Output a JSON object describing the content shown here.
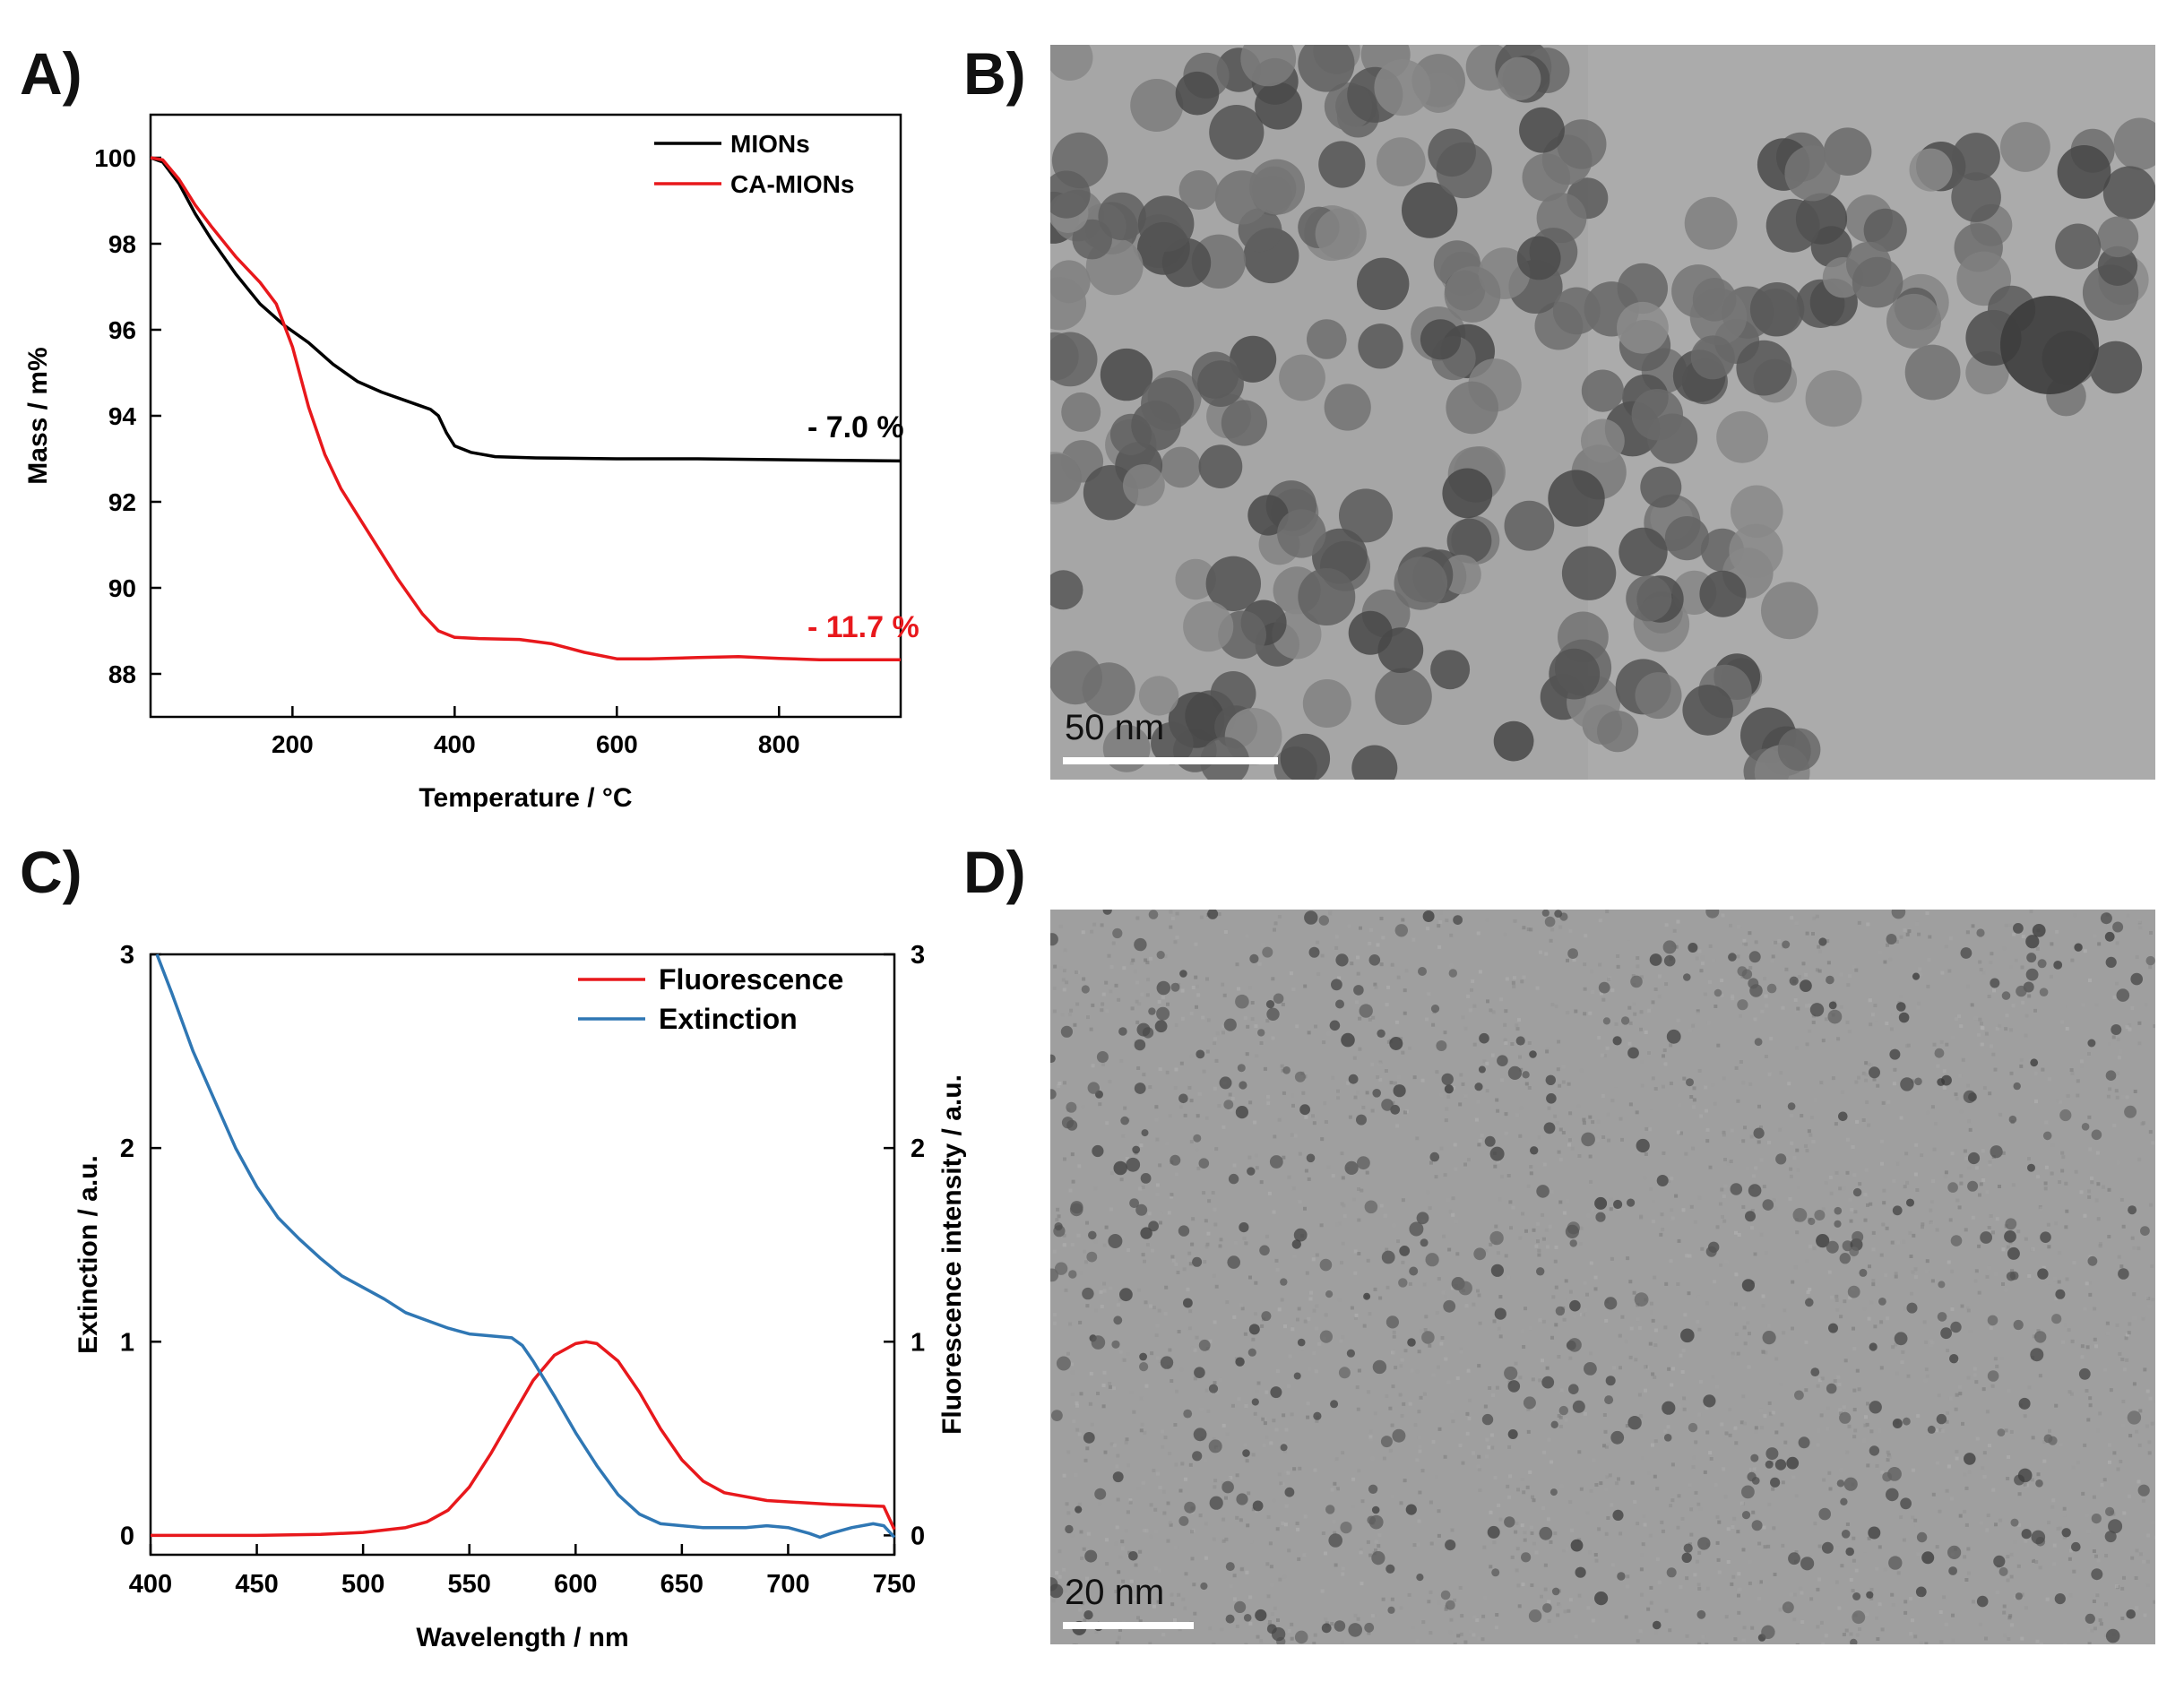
{
  "panels": {
    "a_label": "A)",
    "b_label": "B)",
    "c_label": "C)",
    "d_label": "D)"
  },
  "chart_data": [
    {
      "type": "line",
      "panel": "A)",
      "xlabel": "Temperature / °C",
      "ylabel": "Mass / m%",
      "xlim": [
        25,
        950
      ],
      "ylim": [
        87,
        101
      ],
      "xticks": [
        "200",
        "400",
        "600",
        "800"
      ],
      "yticks": [
        "88",
        "90",
        "92",
        "94",
        "96",
        "98",
        "100"
      ],
      "legend_position": "top-right",
      "series": [
        {
          "name": "MIONs",
          "color": "#000000",
          "x": [
            25,
            40,
            60,
            80,
            100,
            130,
            160,
            190,
            220,
            250,
            280,
            310,
            340,
            370,
            380,
            390,
            400,
            420,
            450,
            500,
            600,
            700,
            800,
            950
          ],
          "y": [
            100,
            99.9,
            99.4,
            98.7,
            98.1,
            97.3,
            96.6,
            96.1,
            95.7,
            95.2,
            94.8,
            94.55,
            94.35,
            94.15,
            94.0,
            93.6,
            93.3,
            93.15,
            93.05,
            93.02,
            93.0,
            93.0,
            92.98,
            92.95
          ]
        },
        {
          "name": "CA-MIONs",
          "color": "#e8181c",
          "x": [
            25,
            40,
            60,
            80,
            100,
            130,
            160,
            180,
            200,
            220,
            240,
            260,
            280,
            300,
            330,
            360,
            380,
            400,
            430,
            480,
            520,
            560,
            600,
            640,
            700,
            750,
            800,
            850,
            900,
            950
          ],
          "y": [
            100,
            99.95,
            99.5,
            98.9,
            98.4,
            97.7,
            97.1,
            96.6,
            95.6,
            94.2,
            93.1,
            92.3,
            91.7,
            91.1,
            90.2,
            89.4,
            89.0,
            88.85,
            88.82,
            88.8,
            88.7,
            88.5,
            88.35,
            88.35,
            88.38,
            88.4,
            88.36,
            88.33,
            88.33,
            88.33
          ]
        }
      ],
      "annotations": [
        {
          "text": "- 7.0 %",
          "color": "#000000",
          "x": 835,
          "y": 93.5
        },
        {
          "text": "- 11.7 %",
          "color": "#e8181c",
          "x": 835,
          "y": 88.85
        }
      ]
    },
    {
      "type": "line",
      "panel": "C)",
      "xlabel": "Wavelength / nm",
      "ylabel": "Extinction / a.u.",
      "ylabel_right": "Fluorescence intensity / a.u.",
      "xlim": [
        400,
        750
      ],
      "ylim": [
        -0.1,
        3
      ],
      "xticks": [
        "400",
        "450",
        "500",
        "550",
        "600",
        "650",
        "700",
        "750"
      ],
      "yticks": [
        "0",
        "1",
        "2",
        "3"
      ],
      "yticks_right": [
        "0",
        "1",
        "2",
        "3"
      ],
      "legend_position": "top-right",
      "series": [
        {
          "name": "Fluorescence",
          "color": "#e8181c",
          "x": [
            400,
            450,
            480,
            500,
            520,
            530,
            540,
            550,
            560,
            570,
            580,
            590,
            600,
            605,
            610,
            620,
            630,
            640,
            650,
            660,
            670,
            690,
            720,
            745,
            750
          ],
          "y": [
            0.0,
            0.0,
            0.005,
            0.015,
            0.04,
            0.07,
            0.13,
            0.25,
            0.42,
            0.61,
            0.8,
            0.93,
            0.99,
            1.0,
            0.99,
            0.9,
            0.74,
            0.55,
            0.39,
            0.28,
            0.22,
            0.18,
            0.16,
            0.15,
            0.03
          ]
        },
        {
          "name": "Extinction",
          "color": "#2f77b4",
          "x": [
            403,
            410,
            420,
            430,
            440,
            450,
            460,
            470,
            480,
            490,
            500,
            510,
            520,
            530,
            540,
            550,
            560,
            570,
            575,
            580,
            590,
            600,
            610,
            620,
            630,
            640,
            650,
            660,
            670,
            680,
            690,
            700,
            710,
            715,
            720,
            730,
            740,
            745,
            750
          ],
          "y": [
            3.0,
            2.8,
            2.5,
            2.25,
            2.0,
            1.8,
            1.64,
            1.53,
            1.43,
            1.34,
            1.28,
            1.22,
            1.15,
            1.11,
            1.07,
            1.04,
            1.03,
            1.02,
            0.98,
            0.9,
            0.72,
            0.53,
            0.36,
            0.21,
            0.11,
            0.06,
            0.05,
            0.04,
            0.04,
            0.04,
            0.05,
            0.04,
            0.01,
            -0.01,
            0.01,
            0.04,
            0.06,
            0.05,
            -0.01
          ]
        }
      ]
    }
  ],
  "images": {
    "b_scale": "50 nm",
    "d_scale": "20 nm"
  }
}
